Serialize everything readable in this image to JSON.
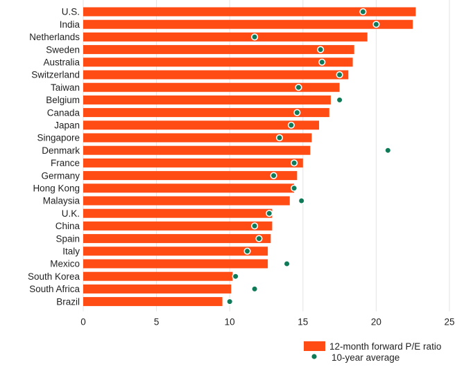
{
  "chart_data": {
    "type": "bar",
    "orientation": "horizontal",
    "title": "",
    "xlabel": "",
    "ylabel": "",
    "xlim": [
      0,
      25
    ],
    "xticks": [
      0,
      5,
      10,
      15,
      20,
      25
    ],
    "grid": true,
    "legend_position": "bottom-right",
    "categories": [
      "U.S.",
      "India",
      "Netherlands",
      "Sweden",
      "Australia",
      "Switzerland",
      "Taiwan",
      "Belgium",
      "Canada",
      "Japan",
      "Singapore",
      "Denmark",
      "France",
      "Germany",
      "Hong Kong",
      "Malaysia",
      "U.K.",
      "China",
      "Spain",
      "Italy",
      "Mexico",
      "South Korea",
      "South Africa",
      "Brazil"
    ],
    "series": [
      {
        "name": "12-month forward P/E ratio",
        "mark": "bar",
        "color": "#ff4b14",
        "values": [
          22.7,
          22.5,
          19.4,
          18.5,
          18.4,
          18.1,
          17.5,
          16.9,
          16.8,
          16.1,
          15.6,
          15.5,
          15.0,
          14.6,
          14.4,
          14.1,
          12.9,
          12.9,
          12.8,
          12.6,
          12.6,
          10.2,
          10.1,
          9.5
        ]
      },
      {
        "name": "10-year average",
        "mark": "dot",
        "color": "#0e7a57",
        "values": [
          19.1,
          20.0,
          11.7,
          16.2,
          16.3,
          17.5,
          14.7,
          17.5,
          14.6,
          14.2,
          13.4,
          20.8,
          14.4,
          13.0,
          14.4,
          14.9,
          12.7,
          11.7,
          12.0,
          11.2,
          13.9,
          10.4,
          11.7,
          10.0
        ]
      }
    ]
  }
}
